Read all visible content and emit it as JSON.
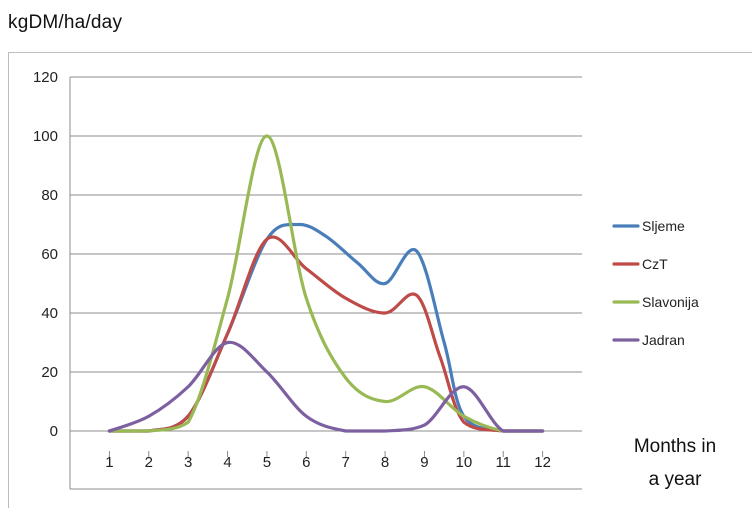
{
  "chart_data": {
    "type": "line",
    "ylabel": "kgDM/ha/day",
    "xlabel": "Months in a year",
    "xlabel_lines": [
      "Months in",
      "a year"
    ],
    "x": [
      1,
      2,
      3,
      4,
      5,
      6,
      7,
      8,
      9,
      10,
      11,
      12
    ],
    "xlim": [
      0,
      13
    ],
    "ylim": [
      0,
      120
    ],
    "yticks": [
      0,
      20,
      40,
      60,
      80,
      100,
      120
    ],
    "xtick_labels": [
      "1",
      "2",
      "3",
      "4",
      "5",
      "6",
      "7",
      "8",
      "9",
      "10",
      "11",
      "12"
    ],
    "grid": "horizontal",
    "legend": "right",
    "series": [
      {
        "name": "Sljeme",
        "color": "#4a7ebb",
        "points": [
          [
            1,
            0
          ],
          [
            2,
            0
          ],
          [
            3,
            5
          ],
          [
            4,
            33
          ],
          [
            5,
            65
          ],
          [
            5.8,
            70
          ],
          [
            6.5,
            66
          ],
          [
            7.3,
            57
          ],
          [
            8,
            50
          ],
          [
            8.8,
            61
          ],
          [
            9.5,
            30
          ],
          [
            10,
            5
          ],
          [
            11,
            0
          ],
          [
            12,
            0
          ]
        ]
      },
      {
        "name": "CzT",
        "color": "#be4b48",
        "points": [
          [
            1,
            0
          ],
          [
            2,
            0
          ],
          [
            3,
            5
          ],
          [
            4,
            33
          ],
          [
            5,
            65
          ],
          [
            6,
            55
          ],
          [
            7,
            45
          ],
          [
            8,
            40
          ],
          [
            8.8,
            46
          ],
          [
            9.4,
            25
          ],
          [
            10,
            3
          ],
          [
            11,
            0
          ],
          [
            12,
            0
          ]
        ]
      },
      {
        "name": "Slavonija",
        "color": "#98b954",
        "points": [
          [
            1,
            0
          ],
          [
            2,
            0
          ],
          [
            3,
            3
          ],
          [
            4,
            45
          ],
          [
            5,
            100
          ],
          [
            6,
            45
          ],
          [
            7,
            18
          ],
          [
            8,
            10
          ],
          [
            9,
            15
          ],
          [
            10,
            5
          ],
          [
            11,
            0
          ],
          [
            12,
            0
          ]
        ]
      },
      {
        "name": "Jadran",
        "color": "#7d60a0",
        "points": [
          [
            1,
            0
          ],
          [
            2,
            5
          ],
          [
            3,
            15
          ],
          [
            4,
            30
          ],
          [
            5,
            20
          ],
          [
            6,
            5
          ],
          [
            7,
            0
          ],
          [
            8,
            0
          ],
          [
            9,
            2
          ],
          [
            10,
            15
          ],
          [
            11,
            0
          ],
          [
            12,
            0
          ]
        ]
      }
    ]
  }
}
